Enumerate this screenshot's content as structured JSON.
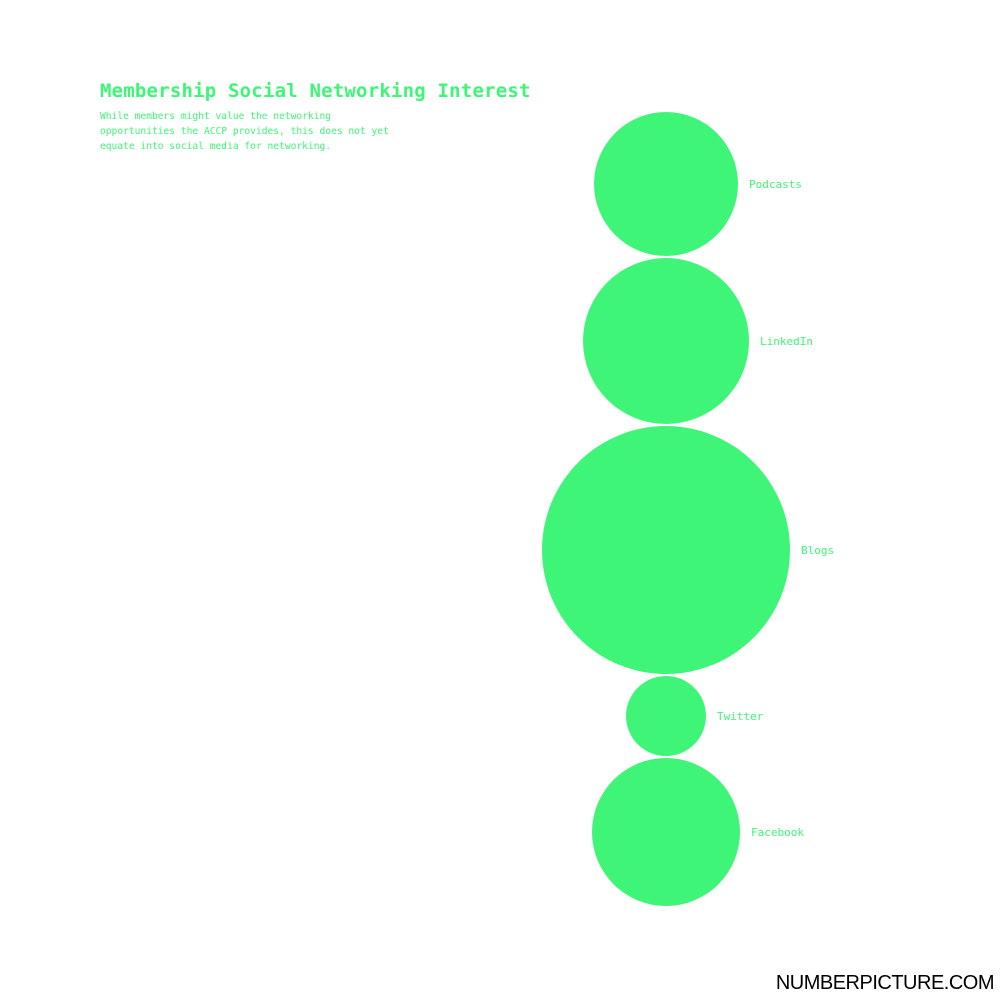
{
  "title": "Membership Social Networking Interest",
  "subtitle": "While members might value the networking opportunities the ACCP provides, this does not yet equate into social media for networking.",
  "brand": "NUMBERPICTURE.COM",
  "colors": {
    "bubble": "#3ef577",
    "text": "#3ef577",
    "background": "#ffffff",
    "brand": "#000000"
  },
  "chart_data": {
    "type": "bubble",
    "layout": "vertical-stack",
    "legend": "none",
    "grid": false,
    "categories": [
      "Podcasts",
      "LinkedIn",
      "Blogs",
      "Twitter",
      "Facebook"
    ],
    "values": [
      72,
      83,
      124,
      40,
      74
    ]
  }
}
